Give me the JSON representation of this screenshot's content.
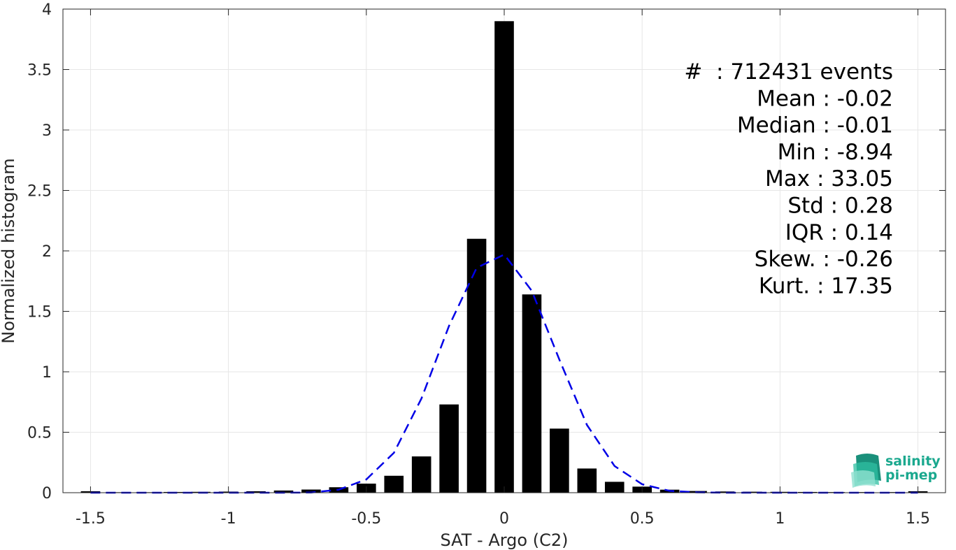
{
  "chart_data": {
    "type": "bar",
    "title": "",
    "xlabel": "SAT - Argo (C2)",
    "ylabel": "Normalized histogram",
    "xlim": [
      -1.6,
      1.6
    ],
    "ylim": [
      0,
      4
    ],
    "grid": true,
    "x_ticks": [
      -1.5,
      -1,
      -0.5,
      0,
      0.5,
      1,
      1.5
    ],
    "x_tick_labels": [
      "-1.5",
      "-1",
      "-0.5",
      "0",
      "0.5",
      "1",
      "1.5"
    ],
    "y_ticks": [
      0,
      0.5,
      1,
      1.5,
      2,
      2.5,
      3,
      3.5,
      4
    ],
    "y_tick_labels": [
      "0",
      "0.5",
      "1",
      "1.5",
      "2",
      "2.5",
      "3",
      "3.5",
      "4"
    ],
    "bar_width": 0.07,
    "bars": {
      "x": [
        -1.5,
        -1.4,
        -1.3,
        -1.2,
        -1.1,
        -1.0,
        -0.9,
        -0.8,
        -0.7,
        -0.6,
        -0.5,
        -0.4,
        -0.3,
        -0.2,
        -0.1,
        0.0,
        0.1,
        0.2,
        0.3,
        0.4,
        0.5,
        0.6,
        0.7,
        0.8,
        0.9,
        1.0,
        1.1,
        1.2,
        1.3,
        1.4,
        1.5
      ],
      "values": [
        0.012,
        0.004,
        0.004,
        0.006,
        0.007,
        0.009,
        0.012,
        0.018,
        0.026,
        0.045,
        0.075,
        0.14,
        0.3,
        0.73,
        2.1,
        3.9,
        1.64,
        0.53,
        0.2,
        0.09,
        0.05,
        0.025,
        0.014,
        0.01,
        0.008,
        0.007,
        0.006,
        0.005,
        0.005,
        0.005,
        0.012
      ],
      "color": "#000000"
    },
    "fit_curve": {
      "style": "dashed",
      "color": "#0000e6",
      "x": [
        -1.5,
        -1.4,
        -1.3,
        -1.2,
        -1.1,
        -1.0,
        -0.9,
        -0.8,
        -0.7,
        -0.6,
        -0.5,
        -0.4,
        -0.3,
        -0.2,
        -0.1,
        0.0,
        0.1,
        0.2,
        0.3,
        0.4,
        0.5,
        0.6,
        0.7,
        0.8,
        0.9,
        1.0,
        1.1,
        1.2,
        1.3,
        1.4,
        1.5
      ],
      "values": [
        0,
        0,
        0,
        0,
        0,
        0,
        0,
        0,
        0.002,
        0.025,
        0.11,
        0.33,
        0.78,
        1.38,
        1.86,
        1.97,
        1.67,
        1.1,
        0.56,
        0.22,
        0.07,
        0.015,
        0.003,
        0,
        0,
        0,
        0,
        0,
        0,
        0,
        0
      ]
    }
  },
  "stats": {
    "lines": [
      "#  : 712431 events",
      "Mean : -0.02",
      "Median : -0.01",
      "Min : -8.94",
      "Max : 33.05",
      "Std : 0.28",
      "IQR : 0.14",
      "Skew. : -0.26",
      "Kurt. : 17.35"
    ]
  },
  "logo": {
    "line1": "salinity",
    "line2": "pi-mep",
    "color": "#1aa88e"
  }
}
